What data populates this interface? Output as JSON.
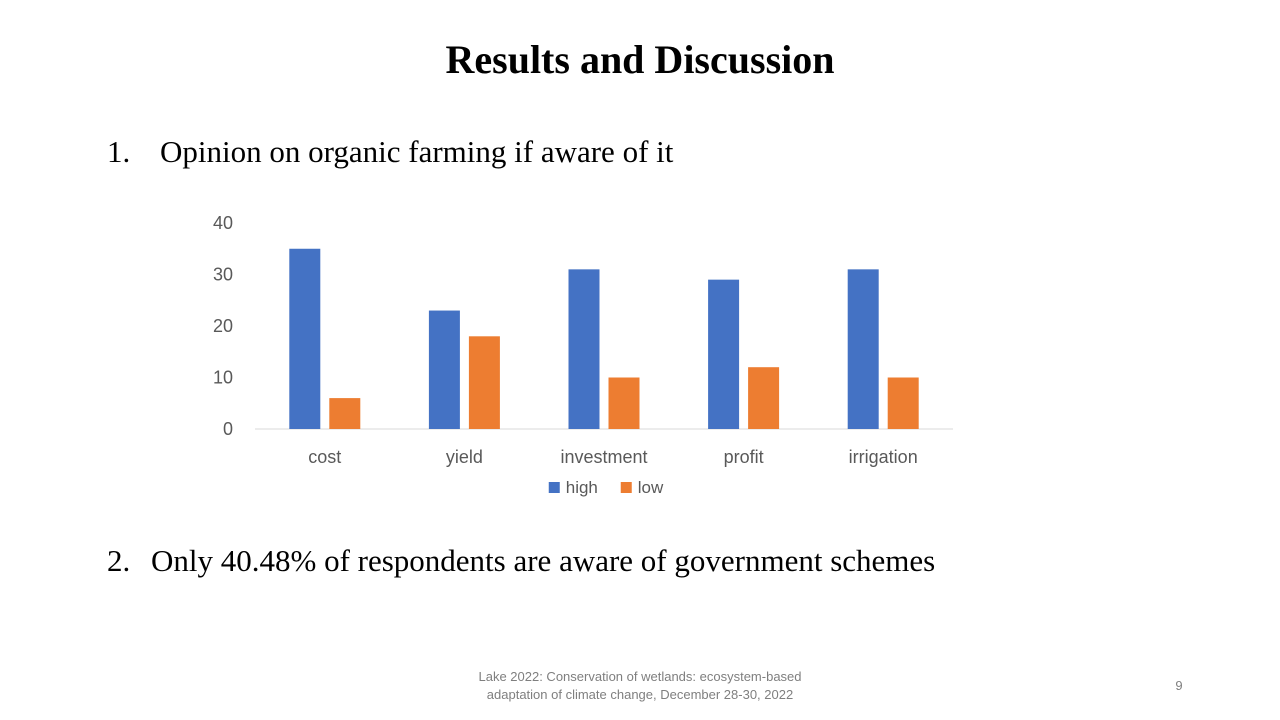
{
  "slide": {
    "title": "Results and Discussion",
    "point1": {
      "number": "1.",
      "text": "Opinion on organic farming if aware of it"
    },
    "point2": {
      "number": "2.",
      "text": "Only 40.48% of respondents are aware of government schemes"
    },
    "footer_line1": "Lake 2022: Conservation of wetlands: ecosystem-based",
    "footer_line2": "adaptation of climate change, December 28-30, 2022",
    "page_number": "9"
  },
  "chart_data": {
    "type": "bar",
    "title": "",
    "xlabel": "",
    "ylabel": "",
    "categories": [
      "cost",
      "yield",
      "investment",
      "profit",
      "irrigation"
    ],
    "series": [
      {
        "name": "high",
        "values": [
          35,
          23,
          31,
          29,
          31
        ],
        "color": "#4472C4"
      },
      {
        "name": "low",
        "values": [
          6,
          18,
          10,
          12,
          10
        ],
        "color": "#ED7D31"
      }
    ],
    "ylim": [
      0,
      40
    ],
    "yticks": [
      "0",
      "10",
      "20",
      "30",
      "40"
    ],
    "grid": false,
    "legend_position": "bottom",
    "axis_text_color": "#595959",
    "axis_line_color": "#d9d9d9"
  }
}
